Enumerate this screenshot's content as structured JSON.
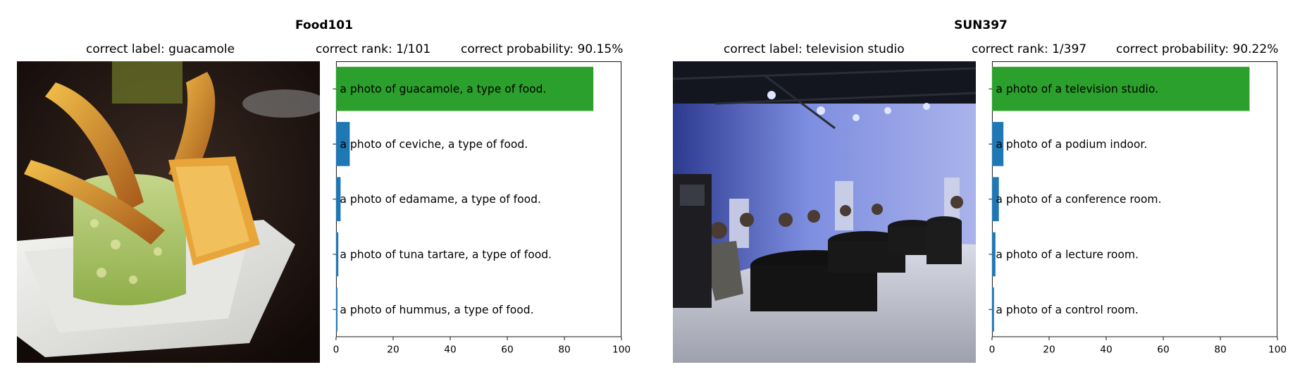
{
  "chart_data": [
    {
      "type": "bar",
      "orientation": "horizontal",
      "title": "Food101",
      "image_caption": "correct label: guacamole",
      "rank_text": "correct rank: 1/101",
      "probability_text": "correct probability: 90.15%",
      "image_icon": "guacamole-photo",
      "categories": [
        "a photo of guacamole, a type of food.",
        "a photo of ceviche, a type of food.",
        "a photo of edamame, a type of food.",
        "a photo of tuna tartare, a type of food.",
        "a photo of hummus, a type of food."
      ],
      "values": [
        90.15,
        4.8,
        1.6,
        0.8,
        0.5
      ],
      "bar_colors": [
        "#2ca02c",
        "#1f77b4",
        "#1f77b4",
        "#1f77b4",
        "#1f77b4"
      ],
      "xlim": [
        0,
        100
      ],
      "xticks": [
        "0",
        "20",
        "40",
        "60",
        "80",
        "100"
      ],
      "grid": false
    },
    {
      "type": "bar",
      "orientation": "horizontal",
      "title": "SUN397",
      "image_caption": "correct label: television studio",
      "rank_text": "correct rank: 1/397",
      "probability_text": "correct probability: 90.22%",
      "image_icon": "television-studio-photo",
      "categories": [
        "a photo of a television studio.",
        "a photo of a podium indoor.",
        "a photo of a conference room.",
        "a photo of a lecture room.",
        "a photo of a control room."
      ],
      "values": [
        90.22,
        4.0,
        2.4,
        1.2,
        0.7
      ],
      "bar_colors": [
        "#2ca02c",
        "#1f77b4",
        "#1f77b4",
        "#1f77b4",
        "#1f77b4"
      ],
      "xlim": [
        0,
        100
      ],
      "xticks": [
        "0",
        "20",
        "40",
        "60",
        "80",
        "100"
      ],
      "grid": false
    }
  ]
}
